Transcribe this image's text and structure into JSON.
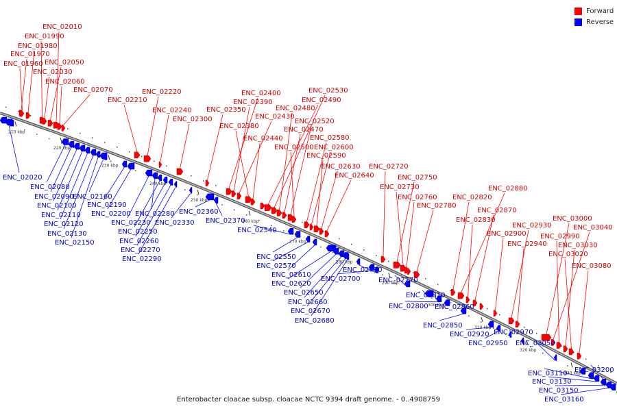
{
  "legend": {
    "forward_label": "Forward",
    "reverse_label": "Reverse",
    "forward_color": "#ff0000",
    "reverse_color": "#0000ff"
  },
  "caption": "Enterobacter cloacae subsp. cloacae NCTC 9394 draft genome. - 0..4908759",
  "backbone_color": "#7a7a7a",
  "ticks": [
    "210 kbp",
    "220 kbp",
    "230 kbp",
    "240 kbp",
    "250 kbp",
    "260 kbp",
    "270 kbp",
    "280 kbp",
    "290 kbp",
    "300 kbp",
    "310 kbp",
    "320 kbp",
    "330 kbp"
  ],
  "forward_genes": [
    "ENC_02010",
    "ENC_01990",
    "ENC_01980",
    "ENC_01970",
    "ENC_01960",
    "ENC_02050",
    "ENC_02030",
    "ENC_02060",
    "ENC_02070",
    "ENC_02220",
    "ENC_02210",
    "ENC_02240",
    "ENC_02300",
    "ENC_02400",
    "ENC_02390",
    "ENC_02350",
    "ENC_02430",
    "ENC_02380",
    "ENC_02440",
    "ENC_02530",
    "ENC_02490",
    "ENC_02480",
    "ENC_02470",
    "ENC_02520",
    "ENC_02500",
    "ENC_02580",
    "ENC_02600",
    "ENC_02590",
    "ENC_02630",
    "ENC_02640",
    "ENC_02720",
    "ENC_02750",
    "ENC_02730",
    "ENC_02760",
    "ENC_02780",
    "ENC_02880",
    "ENC_02820",
    "ENC_02870",
    "ENC_02830",
    "ENC_02930",
    "ENC_02900",
    "ENC_02940",
    "ENC_03000",
    "ENC_03040",
    "ENC_02990",
    "ENC_03030",
    "ENC_03020",
    "ENC_03080"
  ],
  "reverse_genes": [
    "ENC_02020",
    "ENC_02080",
    "ENC_02090",
    "ENC_02100",
    "ENC_02110",
    "ENC_02120",
    "ENC_02130",
    "ENC_02150",
    "ENC_02160",
    "ENC_02190",
    "ENC_02200",
    "ENC_02230",
    "ENC_02250",
    "ENC_02260",
    "ENC_02270",
    "ENC_02290",
    "ENC_02280",
    "ENC_02330",
    "ENC_02360",
    "ENC_02370",
    "ENC_02540",
    "ENC_02550",
    "ENC_02570",
    "ENC_02610",
    "ENC_02620",
    "ENC_02650",
    "ENC_02660",
    "ENC_02670",
    "ENC_02680",
    "ENC_02700",
    "ENC_02710",
    "ENC_02770",
    "ENC_02810",
    "ENC_02800",
    "ENC_02860",
    "ENC_02850",
    "ENC_02920",
    "ENC_02970",
    "ENC_02950",
    "ENC_03050",
    "ENC_03110",
    "ENC_03130",
    "ENC_03150",
    "ENC_03160",
    "ENC_03200"
  ]
}
